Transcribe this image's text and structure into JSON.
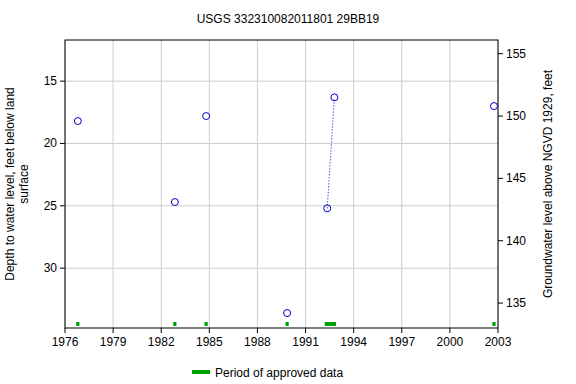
{
  "chart_data": {
    "type": "scatter",
    "title": "USGS 332310082011801 29BB19",
    "ylabel": "Depth to water level, feet below land\nsurface",
    "y2label": "Groundwater level above NGVD 1929, feet",
    "xlim": [
      1976,
      2003
    ],
    "xticks": [
      1976,
      1979,
      1982,
      1985,
      1988,
      1991,
      1994,
      1997,
      2000,
      2003
    ],
    "ylim": [
      11.7,
      34.8
    ],
    "yticks": [
      15,
      20,
      25,
      30
    ],
    "y2lim": [
      156.1,
      133.0
    ],
    "y2ticks": [
      135,
      140,
      145,
      150,
      155
    ],
    "grid": true,
    "series": [
      {
        "type": "scatter",
        "marker": "circle",
        "color": "#0000cc",
        "x": [
          1976.8,
          1982.85,
          1984.8,
          1989.85,
          1992.35,
          1992.8,
          2002.75
        ],
        "values": [
          18.2,
          24.7,
          17.8,
          33.6,
          25.2,
          16.3,
          17.0
        ]
      },
      {
        "type": "line",
        "line_style": "dotted",
        "color": "#0000cc",
        "x": [
          1992.35,
          1992.8
        ],
        "values": [
          25.2,
          16.3
        ]
      }
    ],
    "approved_periods": [
      [
        1976.7,
        1976.9
      ],
      [
        1982.75,
        1982.95
      ],
      [
        1984.7,
        1984.9
      ],
      [
        1989.75,
        1989.95
      ],
      [
        1992.2,
        1992.9
      ],
      [
        2002.65,
        2002.85
      ]
    ],
    "approved_color": "#00a000",
    "legend_label": "Period of approved data"
  }
}
